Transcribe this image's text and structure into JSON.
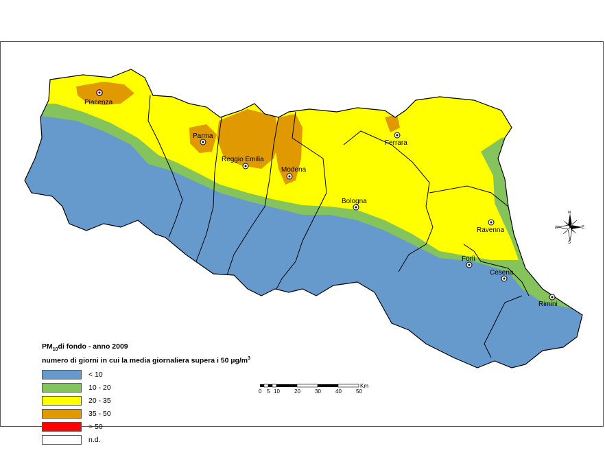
{
  "legend": {
    "title_prefix": "PM",
    "title_sub": "10",
    "title_suffix": "di fondo - anno 2009",
    "subtitle": "numero di giorni in cui la media giornaliera supera i 50 µg/m",
    "subtitle_sup": "3",
    "classes": [
      {
        "label": "< 10",
        "color": "#6699cc"
      },
      {
        "label": "10 - 20",
        "color": "#85c45c"
      },
      {
        "label": "20 - 35",
        "color": "#ffff00"
      },
      {
        "label": "35 - 50",
        "color": "#e09a00"
      },
      {
        "label": "> 50",
        "color": "#ff0000"
      },
      {
        "label": "n.d.",
        "color": "#ffffff"
      }
    ]
  },
  "cities": [
    {
      "name": "Piacenza"
    },
    {
      "name": "Parma"
    },
    {
      "name": "Reggio Emilia"
    },
    {
      "name": "Modena"
    },
    {
      "name": "Ferrara"
    },
    {
      "name": "Bologna"
    },
    {
      "name": "Ravenna"
    },
    {
      "name": "Forlì"
    },
    {
      "name": "Cesena"
    },
    {
      "name": "Rimini"
    }
  ],
  "scalebar": {
    "ticks": [
      "0",
      "5",
      "10",
      "20",
      "30",
      "40",
      "50"
    ],
    "unit": "Km"
  },
  "compass": {
    "n": "N",
    "s": "S",
    "e": "E",
    "w": "W"
  }
}
